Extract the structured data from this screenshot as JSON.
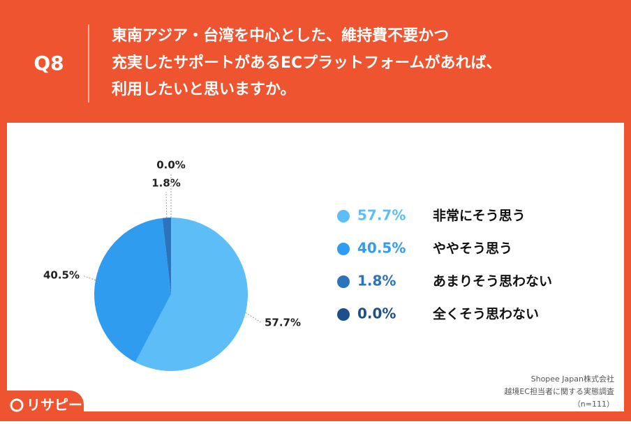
{
  "header": {
    "label": "Q8",
    "question_lines": [
      "東南アジア・台湾を中心とした、維持費不要かつ",
      "充実したサポートがあるECプラットフォームがあれば、",
      "利用したいと思いますか。"
    ]
  },
  "chart_data": {
    "type": "pie",
    "categories": [
      "非常にそう思う",
      "ややそう思う",
      "あまりそう思わない",
      "全くそう思わない"
    ],
    "values": [
      57.7,
      40.5,
      1.8,
      0.0
    ],
    "value_labels": [
      "57.7%",
      "40.5%",
      "1.8%",
      "0.0%"
    ],
    "colors": [
      "#5dbdf7",
      "#2f9cf0",
      "#2b73ba",
      "#1d4f8a"
    ],
    "legend": "right"
  },
  "source": {
    "lines": [
      "Shopee Japan株式会社",
      "越境EC担当者に関する実態調査",
      "（n=111）"
    ]
  },
  "logo": "リサピー"
}
